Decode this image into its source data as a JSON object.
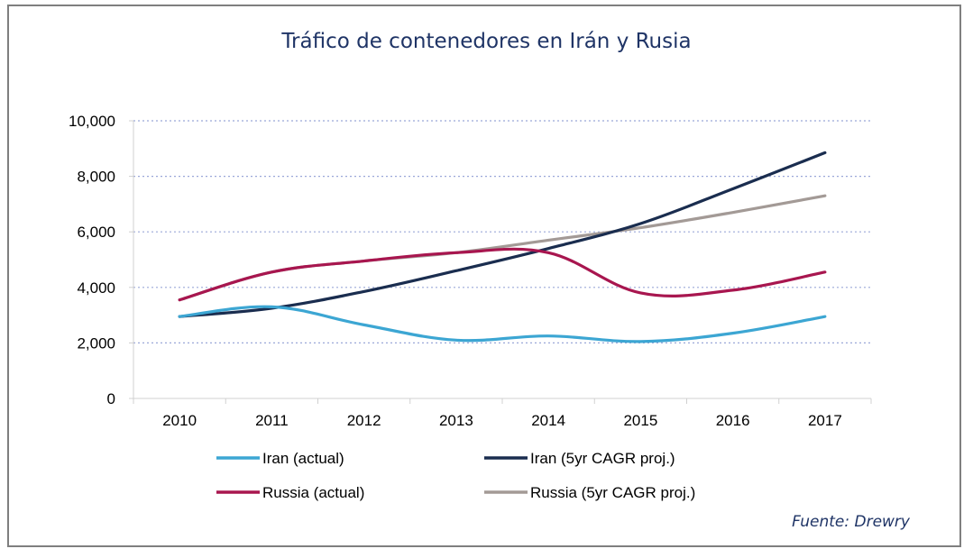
{
  "chart_data": {
    "type": "line",
    "title": "Tráfico de contenedores en Irán y Rusia",
    "categories": [
      "2010",
      "2011",
      "2012",
      "2013",
      "2014",
      "2015",
      "2016",
      "2017"
    ],
    "ylim": [
      0,
      10000
    ],
    "yticks": [
      0,
      2000,
      4000,
      6000,
      8000,
      10000
    ],
    "ytick_labels": [
      "0",
      "2,000",
      "4,000",
      "6,000",
      "8,000",
      "10,000"
    ],
    "grid": true,
    "legend_position": "bottom",
    "series": [
      {
        "name": "Iran (actual)",
        "color": "#3ca6d3",
        "values": [
          2950,
          3300,
          2650,
          2100,
          2250,
          2050,
          2350,
          2950
        ]
      },
      {
        "name": "Iran (5yr CAGR proj.)",
        "color": "#1a2d4f",
        "values": [
          2950,
          3250,
          3850,
          4600,
          5400,
          6300,
          7550,
          8850
        ]
      },
      {
        "name": "Russia (actual)",
        "color": "#a8164f",
        "values": [
          3550,
          4550,
          4950,
          5250,
          5250,
          3800,
          3900,
          4550
        ]
      },
      {
        "name": "Russia (5yr CAGR proj.)",
        "color": "#a39a96",
        "values": [
          3550,
          4550,
          4950,
          5250,
          5700,
          6150,
          6700,
          7300
        ]
      }
    ]
  },
  "source": "Fuente: Drewry"
}
